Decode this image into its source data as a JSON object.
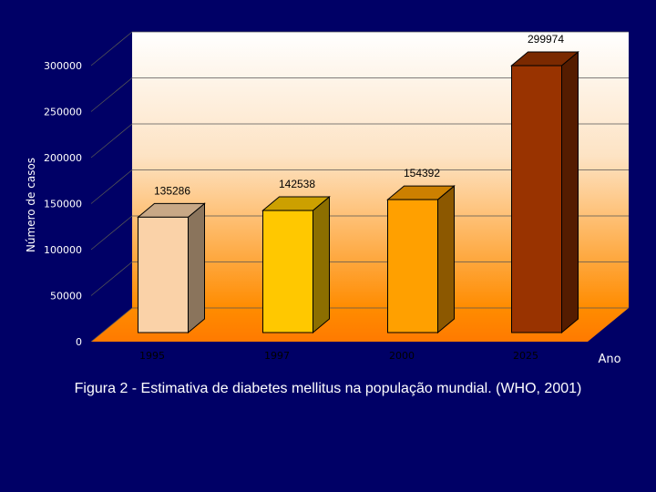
{
  "chart_data": {
    "type": "bar",
    "categories": [
      "1995",
      "1997",
      "2000",
      "2025"
    ],
    "values": [
      135286,
      142538,
      154392,
      299974
    ],
    "value_labels": [
      "135286",
      "142538",
      "154392",
      "299974"
    ],
    "xlabel": "Ano",
    "ylabel": "Número de casos",
    "ylim": [
      0,
      300000
    ],
    "yticks": [
      0,
      50000,
      100000,
      150000,
      200000,
      250000,
      300000
    ],
    "grid": true,
    "colors": {
      "background": "#000066",
      "bars": [
        "#fad2a8",
        "#ffc800",
        "#ffa000",
        "#993300"
      ],
      "text": "#ffffff",
      "label_text": "#000000"
    }
  },
  "caption": "Figura 2 - Estimativa de diabetes mellitus  na população mundial. (WHO, 2001)"
}
